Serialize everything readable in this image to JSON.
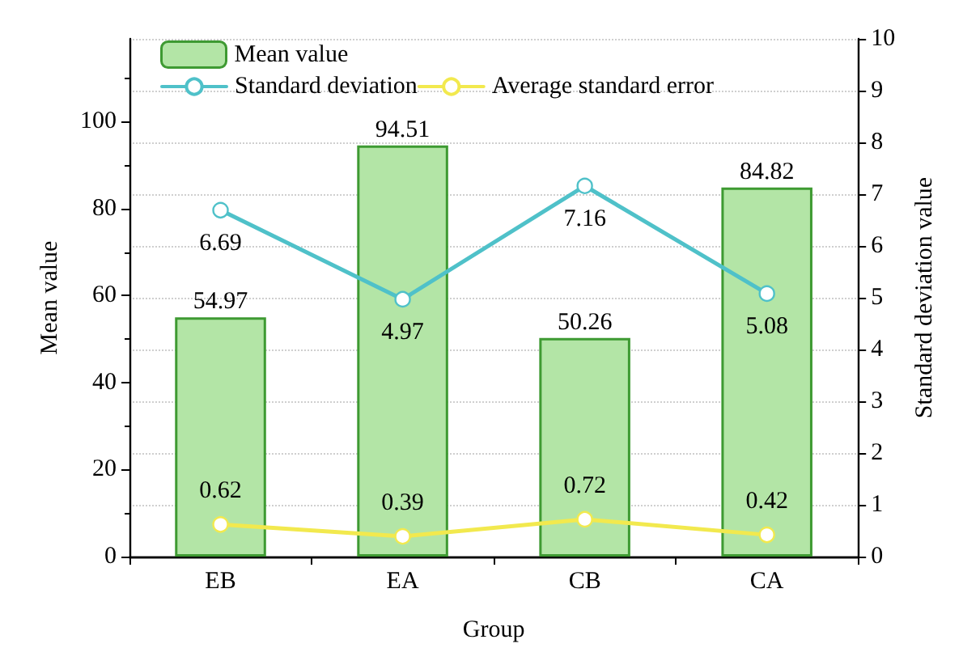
{
  "chart_data": {
    "type": "bar",
    "xlabel": "Group",
    "ylabel": "Mean value",
    "y2label": "Standard deviation value",
    "categories": [
      "EB",
      "EA",
      "CB",
      "CA"
    ],
    "series": [
      {
        "name": "Mean value",
        "color": "#b3e5a6",
        "values": [
          54.97,
          94.51,
          50.26,
          84.82
        ]
      },
      {
        "name": "Standard deviation",
        "type": "line",
        "axis": "y2",
        "color": "#4fc1c9",
        "values": [
          6.69,
          4.97,
          7.16,
          5.08
        ]
      },
      {
        "name": "Average standard error",
        "type": "line",
        "axis": "y2",
        "color": "#f2e94e",
        "values": [
          0.62,
          0.39,
          0.72,
          0.42
        ]
      }
    ],
    "ylim": [
      0,
      119
    ],
    "yticks": [
      0,
      20,
      40,
      60,
      80,
      100
    ],
    "y2lim": [
      0,
      10
    ],
    "y2ticks": [
      0,
      1,
      2,
      3,
      4,
      5,
      6,
      7,
      8,
      9,
      10
    ],
    "grid": "y2",
    "legend": "top left",
    "marker": "circle",
    "line_style": "solid",
    "data_labels": true
  }
}
